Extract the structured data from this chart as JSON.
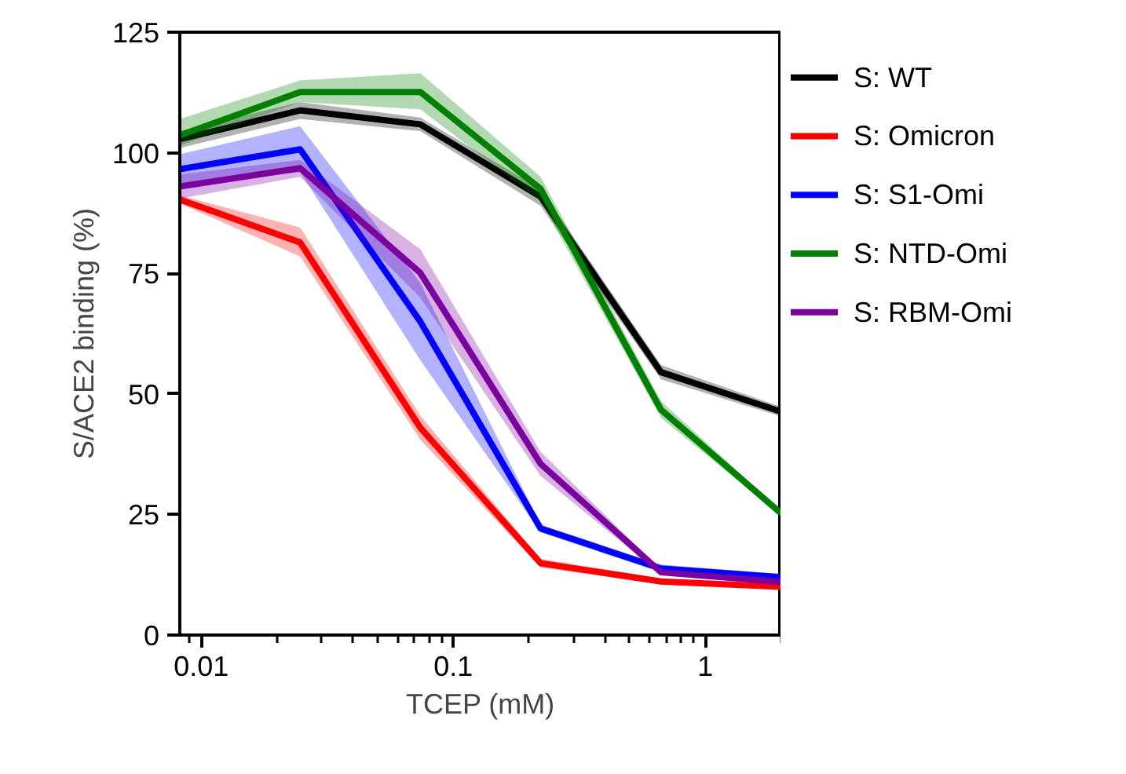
{
  "chart_data": {
    "type": "line",
    "xlabel": "TCEP (mM)",
    "ylabel": "S/ACE2 binding (%)",
    "log": "x",
    "x": [
      0.00823,
      0.0247,
      0.074,
      0.222,
      0.667,
      2
    ],
    "xlim": [
      0.00823,
      2
    ],
    "xticks": [
      {
        "value": 0.01,
        "label": "0.01"
      },
      {
        "value": 0.1,
        "label": "0.1"
      },
      1
    ],
    "ylim": [
      0,
      125
    ],
    "yticks": [
      0,
      25,
      50,
      75,
      100,
      125
    ],
    "grid": false,
    "legend": "right",
    "marker": "none",
    "line_style": "solid",
    "series": [
      {
        "name": "S: WT",
        "color": "#000000",
        "values": [
          102.8,
          108.8,
          105.9,
          90.9,
          54.5,
          46.3
        ],
        "lower": [
          101,
          107,
          104.5,
          89,
          53,
          45.3
        ],
        "upper": [
          104.5,
          110.5,
          107.3,
          92.5,
          56,
          47.3
        ]
      },
      {
        "name": "S: Omicron",
        "color": "#ff0000",
        "values": [
          90.3,
          81.4,
          43,
          14.9,
          11.1,
          10
        ],
        "lower": [
          89.5,
          78.5,
          40.5,
          14,
          10.5,
          9.5
        ],
        "upper": [
          91.2,
          84.5,
          45.5,
          15.8,
          11.7,
          10.5
        ]
      },
      {
        "name": "S: S1-Omi",
        "color": "#0000ff",
        "values": [
          96.6,
          100.7,
          65,
          22.1,
          13.8,
          12
        ],
        "lower": [
          93.5,
          96,
          57,
          21.3,
          13,
          11.3
        ],
        "upper": [
          99.7,
          105.5,
          73,
          22.9,
          14.6,
          12.7
        ]
      },
      {
        "name": "S: NTD-Omi",
        "color": "#008000",
        "values": [
          103.6,
          112.6,
          112.6,
          92.5,
          46.7,
          25.2
        ],
        "lower": [
          101.5,
          110.5,
          109,
          90,
          45,
          24.7
        ],
        "upper": [
          107,
          115,
          116.5,
          95,
          48.5,
          25.7
        ]
      },
      {
        "name": "S: RBM-Omi",
        "color": "#7b00a0",
        "values": [
          93,
          96.8,
          75.1,
          35.5,
          13,
          11
        ],
        "lower": [
          90.5,
          95,
          70,
          33,
          12.5,
          10.5
        ],
        "upper": [
          95.5,
          98.5,
          80,
          38,
          13.5,
          11.5
        ]
      }
    ]
  }
}
